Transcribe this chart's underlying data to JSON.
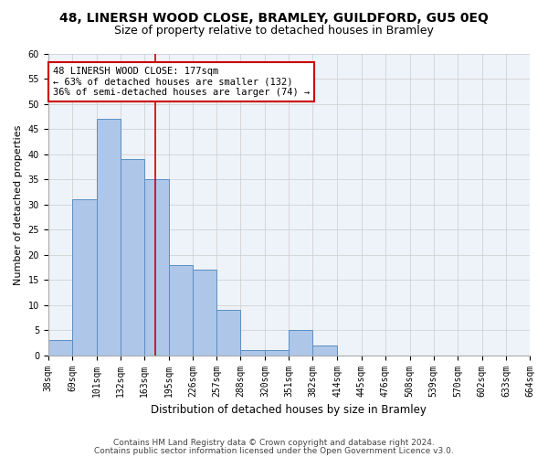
{
  "title1": "48, LINERSH WOOD CLOSE, BRAMLEY, GUILDFORD, GU5 0EQ",
  "title2": "Size of property relative to detached houses in Bramley",
  "xlabel": "Distribution of detached houses by size in Bramley",
  "ylabel": "Number of detached properties",
  "bin_edges": [
    38,
    69,
    101,
    132,
    163,
    195,
    226,
    257,
    288,
    320,
    351,
    382,
    414,
    445,
    476,
    508,
    539,
    570,
    602,
    633,
    664
  ],
  "bar_heights": [
    3,
    31,
    47,
    39,
    35,
    18,
    17,
    9,
    1,
    1,
    5,
    2,
    0,
    0,
    0,
    0,
    0,
    0,
    0,
    0
  ],
  "bar_color": "#aec6e8",
  "bar_edge_color": "#5a8fc2",
  "vline_x": 177,
  "vline_color": "#cc0000",
  "annotation_line1": "48 LINERSH WOOD CLOSE: 177sqm",
  "annotation_line2": "← 63% of detached houses are smaller (132)",
  "annotation_line3": "36% of semi-detached houses are larger (74) →",
  "annotation_box_color": "#ffffff",
  "annotation_box_edge": "#cc0000",
  "ylim": [
    0,
    60
  ],
  "yticks": [
    0,
    5,
    10,
    15,
    20,
    25,
    30,
    35,
    40,
    45,
    50,
    55,
    60
  ],
  "tick_labels": [
    "38sqm",
    "69sqm",
    "101sqm",
    "132sqm",
    "163sqm",
    "195sqm",
    "226sqm",
    "257sqm",
    "288sqm",
    "320sqm",
    "351sqm",
    "382sqm",
    "414sqm",
    "445sqm",
    "476sqm",
    "508sqm",
    "539sqm",
    "570sqm",
    "602sqm",
    "633sqm",
    "664sqm"
  ],
  "footer1": "Contains HM Land Registry data © Crown copyright and database right 2024.",
  "footer2": "Contains public sector information licensed under the Open Government Licence v3.0.",
  "bg_color": "#eef2f9",
  "title1_fontsize": 10,
  "title2_fontsize": 9,
  "xlabel_fontsize": 8.5,
  "ylabel_fontsize": 8,
  "tick_fontsize": 7,
  "annot_fontsize": 7.5,
  "footer_fontsize": 6.5
}
